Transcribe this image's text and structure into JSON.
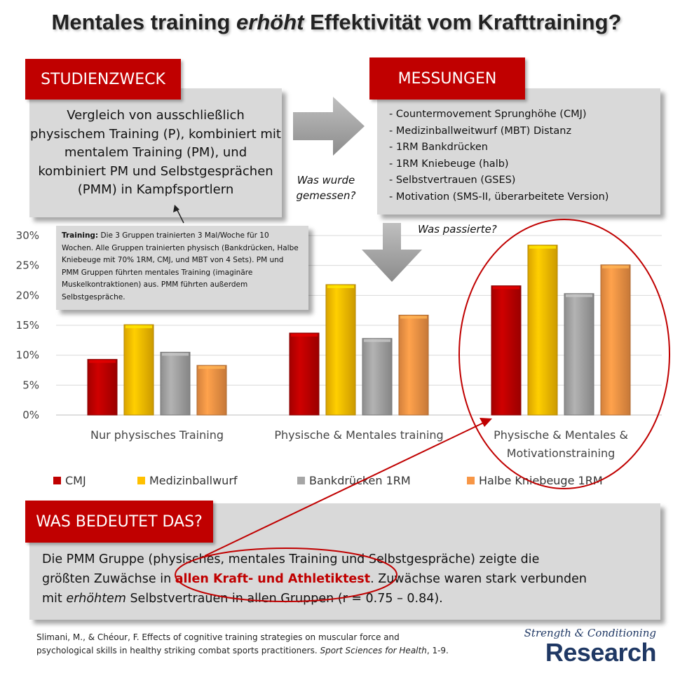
{
  "title": {
    "pre": "Mentales training ",
    "em": "erhöht",
    "post": " Effektivität vom Krafttraining?"
  },
  "purpose": {
    "label": "STUDIENZWECK",
    "text": "Vergleich von ausschließlich physischem Training (P), kombiniert mit mentalem Training (PM), und kombiniert PM und Selbstgesprächen (PMM) in Kampfsportlern"
  },
  "measurements": {
    "label": "MESSUNGEN",
    "items": [
      "- Countermovement  Sprunghöhe (CMJ)",
      "- Medizinballweitwurf  (MBT) Distanz",
      "- 1RM Bankdrücken",
      "- 1RM Kniebeuge  (halb)",
      "- Selbstvertrauen (GSES)",
      "- Motivation  (SMS-II, überarbeitete Version)"
    ]
  },
  "notes": {
    "measured_1": "Was wurde",
    "measured_2": "gemessen?",
    "happened": "Was passierte?"
  },
  "training": {
    "bold": "Training:",
    "text": " Die 3 Gruppen trainierten 3 Mal/Woche für 10 Wochen. Alle Gruppen trainierten physisch (Bankdrücken, Halbe Kniebeuge mit 70% 1RM, CMJ, und MBT von 4 Sets). PM und PMM Gruppen führten mentales Training (imaginäre Muskelkontraktionen) aus. PMM führten außerdem Selbstgespräche."
  },
  "chart_data": {
    "type": "bar",
    "categories": [
      "Nur physisches Training",
      "Physische & Mentales training",
      "Physische & Mentales & Motivationstraining"
    ],
    "category_lines": [
      [
        "Nur physisches Training"
      ],
      [
        "Physische & Mentales training"
      ],
      [
        "Physische & Mentales &",
        "Motivationstraining"
      ]
    ],
    "series": [
      {
        "name": "CMJ",
        "values": [
          9.3,
          13.7,
          21.6
        ],
        "color": "#c00000"
      },
      {
        "name": "Medizinballwurf",
        "values": [
          15.1,
          21.8,
          28.4
        ],
        "color": "#ffc000"
      },
      {
        "name": "Bankdrücken 1RM",
        "values": [
          10.5,
          12.8,
          20.3
        ],
        "color": "#a6a6a6"
      },
      {
        "name": "Halbe Kniebeuge 1RM",
        "values": [
          8.3,
          16.7,
          25.1
        ],
        "color": "#f79646"
      }
    ],
    "yticks": [
      "0%",
      "5%",
      "10%",
      "15%",
      "20%",
      "25%",
      "30%"
    ],
    "ylim": [
      0,
      30
    ],
    "grid": true,
    "legend": "bottom"
  },
  "meaning": {
    "label": "WAS BEDEUTET DAS?",
    "line1": "Die PMM Gruppe (physisches, mentales Training und Selbstgespräche) zeigte die",
    "line2_pre": "größten Zuwächse in ",
    "line2_hl": "allen Kraft- und Athletiktest",
    "line2_post": ". Zuwächse waren stark verbunden",
    "line3_pre": "mit ",
    "line3_em": "erhöhtem",
    "line3_post": " Selbstvertrauen in allen Gruppen (r = 0.75 – 0.84)."
  },
  "citation": {
    "line1": "Slimani, M., & Chéour, F. Effects of cognitive training strategies on muscular force and",
    "line2_pre": "psychological skills in healthy striking combat sports practitioners. ",
    "journal": "Sport Sciences for Health",
    "line2_post": ", 1-9."
  },
  "brand": {
    "line1": "Strength & Conditioning",
    "line2": "Research"
  }
}
